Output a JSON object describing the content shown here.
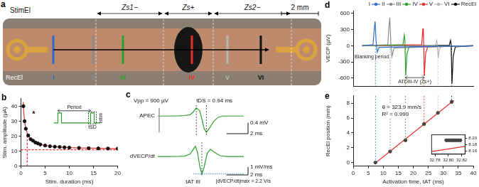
{
  "diagram": {
    "label": "a",
    "stimulation_electrode": "StimEl",
    "zones": [
      "Zs1−",
      "Zs+",
      "Zs2−"
    ],
    "scale_bar": "2 mm",
    "recording_electrode_label": "RecEl",
    "recording_electrodes": [
      {
        "name": "I",
        "color": "#2e6bd0"
      },
      {
        "name": "II",
        "color": "#8c8c8c"
      },
      {
        "name": "III",
        "color": "#2ca02c"
      },
      {
        "name": "IV",
        "color": "#e8302a"
      },
      {
        "name": "V",
        "color": "#b5b5b5"
      },
      {
        "name": "VI",
        "color": "#111111"
      }
    ]
  },
  "chart_data": [
    {
      "title": "b",
      "type": "scatter",
      "xlabel": "Stim. duration (ms)",
      "ylabel": "Stim. amplitude (µA)",
      "xlim": [
        0,
        20
      ],
      "xticks": [
        0,
        5,
        10,
        15,
        20
      ],
      "ylim": [
        0,
        45
      ],
      "yticks": [
        0,
        10,
        20,
        30,
        40
      ],
      "grid": false,
      "series": [
        {
          "type": "scatter",
          "marker": "circle",
          "color": "#111111",
          "x": [
            0.5,
            0.75,
            1,
            1.5,
            2,
            2.5,
            3,
            3.5,
            4,
            5,
            6,
            7,
            8,
            9,
            10,
            12,
            14,
            16,
            18,
            20
          ],
          "values": [
            40,
            30,
            25,
            20.5,
            18,
            17,
            15.8,
            15.2,
            14.5,
            13.8,
            13.3,
            13,
            12.8,
            12.6,
            12.4,
            12.2,
            12,
            11.9,
            11.8,
            11.7
          ]
        },
        {
          "type": "line",
          "color": "#e8302a",
          "x": [
            0.45,
            0.6,
            0.8,
            1,
            1.3,
            1.6,
            2,
            2.5,
            3,
            4,
            5,
            6,
            8,
            10,
            12,
            15,
            20
          ],
          "values": [
            42.8,
            34.8,
            28.9,
            25.3,
            22,
            19.9,
            18.2,
            16.7,
            15.8,
            14.6,
            13.9,
            13.4,
            12.8,
            12.4,
            12.2,
            12,
            11.7
          ]
        },
        {
          "type": "line",
          "line_style": "dashed",
          "color": "#e8302a",
          "x": [
            0,
            20
          ],
          "values": [
            11,
            11
          ]
        },
        {
          "type": "line",
          "line_style": "dashed",
          "color": "#e8302a",
          "x": [
            1.3,
            1.3
          ],
          "values": [
            0,
            22
          ]
        }
      ],
      "annotations": [
        "*"
      ],
      "inset": {
        "period_label": "Period",
        "amplitude_label": "Istim",
        "duration_label": "tSD",
        "color": "#2ca02c"
      }
    },
    {
      "title": "c",
      "type": "line",
      "ylabel": "APEC",
      "xlim": [
        0,
        8
      ],
      "ylim": [
        -0.7,
        0.4
      ],
      "tick_labels": false,
      "grid": false,
      "series": [
        {
          "color": "#2ca02c",
          "x": [
            0,
            1,
            2,
            2.5,
            3,
            3.3,
            3.58,
            3.9,
            4.1,
            4.3,
            4.52,
            4.8,
            5.2,
            5.6,
            6,
            7,
            8
          ],
          "values": [
            0,
            0,
            0.01,
            0.02,
            0.05,
            0.15,
            0.3,
            0.2,
            -0.1,
            -0.45,
            -0.6,
            -0.45,
            -0.2,
            -0.05,
            0,
            0,
            0
          ]
        }
      ],
      "vlines": [
        3.58,
        4.52
      ],
      "annotations": [
        "Vpp = 900 µV",
        "tDS = 0.94 ms"
      ],
      "scale_bars": [
        {
          "axis": "y",
          "value": 0.4,
          "label": "0.4 mV"
        },
        {
          "axis": "x",
          "value": 2,
          "label": "2 ms"
        }
      ]
    },
    {
      "type": "line",
      "ylabel": "dVECP/dt",
      "xlim": [
        0,
        8
      ],
      "ylim": [
        -2.5,
        1.8
      ],
      "tick_labels": false,
      "grid": false,
      "series": [
        {
          "color": "#2ca02c",
          "x": [
            0,
            1,
            2,
            2.5,
            3,
            3.3,
            3.5,
            3.7,
            3.9,
            4.1,
            4.3,
            4.6,
            4.9,
            5.3,
            5.8,
            6.5,
            8
          ],
          "values": [
            0,
            0,
            0.02,
            0.05,
            0.3,
            0.9,
            1.3,
            0.5,
            -1.2,
            -2.2,
            -1.4,
            0.4,
            0.9,
            0.5,
            0.1,
            0,
            0
          ]
        }
      ],
      "vlines": [
        4.1
      ],
      "annotations": [
        "|dVECP/dt|max = 2.2 V/s",
        "tAT III"
      ],
      "scale_bars": [
        {
          "axis": "y",
          "value": 1,
          "label": "1 mV/ms"
        },
        {
          "axis": "x",
          "value": 2,
          "label": "2 ms"
        }
      ]
    },
    {
      "title": "d",
      "type": "line",
      "ylabel": "VECP (µV)",
      "xlim": [
        0,
        40
      ],
      "ylim": [
        -750,
        650
      ],
      "yticks": [
        -600,
        -300,
        0,
        300,
        600
      ],
      "tick_labels": "y",
      "legend": "top",
      "grid": false,
      "series": [
        {
          "name": "I",
          "color": "#2e6bd0",
          "x": [
            3,
            6.6,
            7.0,
            7.3,
            7.6,
            8.0,
            8.6,
            40
          ],
          "values": [
            0,
            20,
            300,
            450,
            100,
            -120,
            -30,
            0
          ]
        },
        {
          "name": "II",
          "color": "#8c8c8c",
          "x": [
            3,
            11.5,
            11.9,
            12.2,
            12.5,
            12.9,
            13.6,
            40
          ],
          "values": [
            0,
            20,
            350,
            520,
            80,
            -200,
            -40,
            0
          ]
        },
        {
          "name": "III",
          "color": "#2ca02c",
          "x": [
            3,
            16.6,
            17.0,
            17.2,
            17.5,
            17.9,
            18.6,
            40
          ],
          "values": [
            0,
            20,
            200,
            120,
            -550,
            -150,
            -20,
            0
          ]
        },
        {
          "name": "IV",
          "color": "#e8302a",
          "x": [
            3,
            22.8,
            23.2,
            23.4,
            23.7,
            24.1,
            24.8,
            40
          ],
          "values": [
            0,
            20,
            320,
            150,
            -560,
            -150,
            -20,
            0
          ]
        },
        {
          "name": "V",
          "color": "#b5b5b5",
          "x": [
            3,
            27.4,
            27.8,
            28.0,
            28.3,
            28.7,
            29.4,
            40
          ],
          "values": [
            0,
            10,
            100,
            40,
            -230,
            -60,
            -10,
            0
          ]
        },
        {
          "name": "VI",
          "color": "#111111",
          "x": [
            3,
            32.0,
            32.4,
            32.6,
            32.9,
            33.3,
            34.0,
            40
          ],
          "values": [
            0,
            10,
            100,
            30,
            -700,
            -200,
            -20,
            0
          ]
        }
      ],
      "annotations": [
        "RecEl",
        "Blanking period",
        "ATDIII-IV (Zs+)"
      ]
    },
    {
      "title": "e",
      "type": "scatter",
      "xlabel": "Activation time, tAT (ms)",
      "ylabel": "RecEl position (mm)",
      "xlim": [
        0,
        40
      ],
      "xticks": [
        0,
        5,
        10,
        15,
        20,
        25,
        30,
        35,
        40
      ],
      "ylim": [
        -0.5,
        9
      ],
      "yticks": [
        0,
        2,
        4,
        6,
        8
      ],
      "grid": false,
      "series": [
        {
          "type": "scatter",
          "marker": "circle",
          "color": "#444444",
          "x": [
            7.4,
            12.3,
            17.4,
            23.6,
            28.2,
            32.8
          ],
          "values": [
            0,
            1.5,
            3,
            5.2,
            6.7,
            8.19
          ]
        },
        {
          "type": "line",
          "color": "#e8302a",
          "x": [
            7.4,
            33.5
          ],
          "values": [
            -0.06,
            8.39
          ]
        }
      ],
      "annotations": [
        "θ = 323.9 mm/s",
        "R² = 0.999"
      ]
    },
    {
      "type": "scatter",
      "xlim": [
        32.775,
        32.825
      ],
      "xticks": [
        32.78,
        {
          "value": 32.8,
          "label": "32.80"
        },
        32.82
      ],
      "ylim": [
        8.15,
        8.21
      ],
      "yticks": [
        8.16,
        8.18,
        {
          "value": 8.2,
          "label": "8.20"
        }
      ],
      "grid": false,
      "series": [
        {
          "type": "scatter",
          "marker": "circle",
          "color": "#444444",
          "x": [
            32.797,
            32.8,
            32.803,
            32.806,
            32.809,
            32.812,
            32.815,
            32.818
          ],
          "values": [
            8.193,
            8.193,
            8.193,
            8.193,
            8.193,
            8.193,
            8.193,
            8.193
          ]
        },
        {
          "type": "line",
          "color": "#e8302a",
          "x": [
            32.775,
            32.825
          ],
          "values": [
            8.158,
            8.174
          ]
        }
      ]
    }
  ]
}
